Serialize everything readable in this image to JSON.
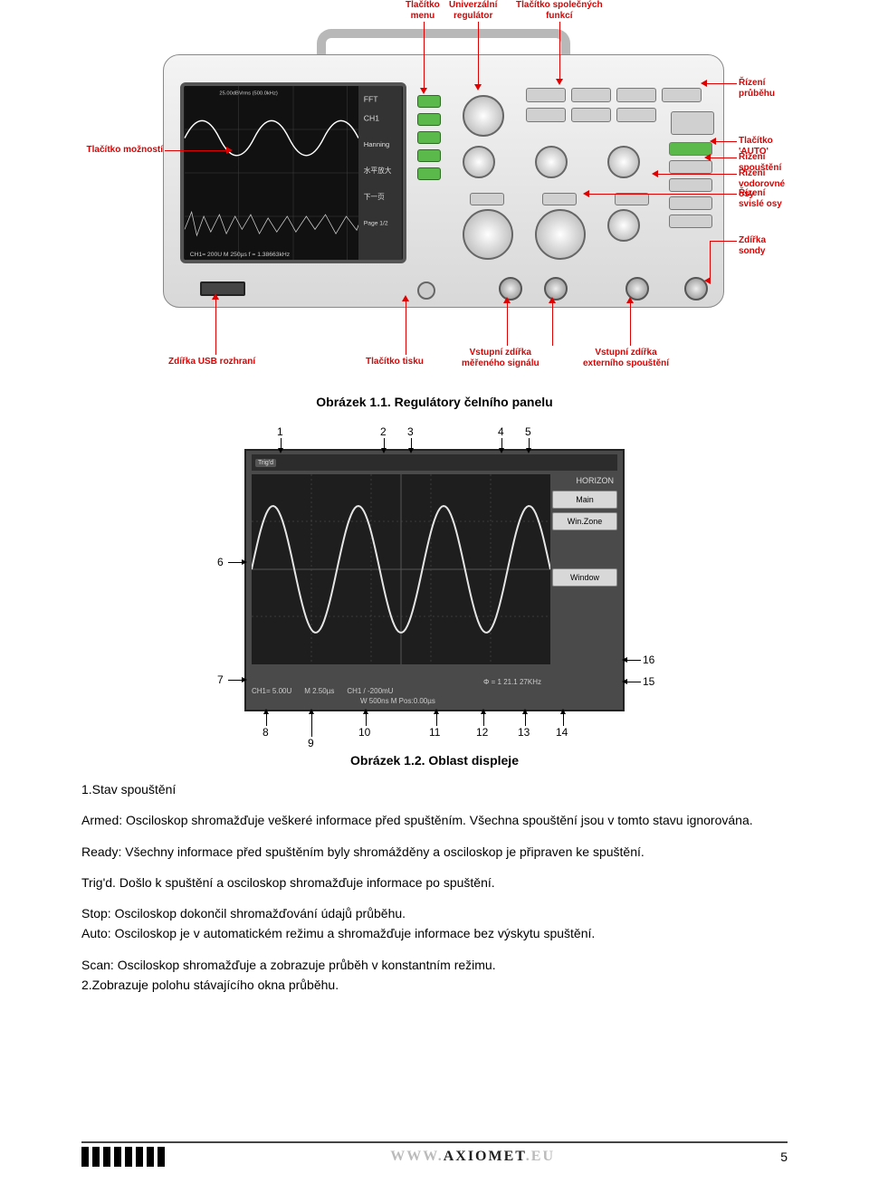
{
  "fig11": {
    "caption": "Obrázek 1.1. Regulátory čelního panelu",
    "annotations": {
      "menu_btn": "Tlačítko\nmenu",
      "universal_reg": "Univerzální\nregulátor",
      "common_fn": "Tlačítko společných\nfunkcí",
      "run_ctrl": "Řízení průběhu",
      "auto_btn": "Tlačítko 'AUTO'",
      "trig_ctrl": "Řízení spouštění",
      "h_axis": "Řízení vodorovné osy",
      "v_axis": "Řízení svislé osy",
      "probe_sock": "Zdířka sondy",
      "options_btn": "Tlačítko možností",
      "usb_sock": "Zdířka USB rozhraní",
      "print_btn": "Tlačítko tisku",
      "sig_in": "Vstupní zdířka\nměřeného signálu",
      "ext_trig": "Vstupní zdířka\nexterního spouštění"
    },
    "screen_side_labels": [
      "FFT",
      "CH1",
      "Hanning",
      "水平放大",
      "下一页",
      "Page 1/2"
    ],
    "screen_bottom": "CH1= 200U    M 250µs    f = 1.38663kHz",
    "screen_top": "25.00dBVrms (500.0kHz)"
  },
  "fig12": {
    "caption": "Obrázek 1.2. Oblast displeje",
    "top_tags": [
      "Trig'd"
    ],
    "side_title": "HORIZON",
    "side_buttons": [
      "Main",
      "Win.Zone",
      "Window"
    ],
    "bottom_line1": "Φ = 1 21.1 27KHz",
    "bottom_line2_a": "CH1= 5.00U",
    "bottom_line2_b": "M 2.50µs",
    "bottom_line2_c": "CH1 / -200mU",
    "bottom_line3": "W 500ns  M Pos:0.00µs",
    "pointer_nums": [
      "1",
      "2",
      "3",
      "4",
      "5",
      "6",
      "7",
      "8",
      "9",
      "10",
      "11",
      "12",
      "13",
      "14",
      "15",
      "16"
    ],
    "wave": {
      "type": "line",
      "color": "#e6e6e6",
      "bg": "#1e1e1e",
      "grid_color": "#555555",
      "xlim": [
        0,
        330
      ],
      "ylim": [
        0,
        210
      ],
      "amplitude": 70,
      "periods": 3.5,
      "y_center": 105
    }
  },
  "text": {
    "l1": "1.Stav spouštění",
    "p1": "Armed: Osciloskop shromažďuje veškeré informace před spuštěním. Všechna spouštění jsou v tomto stavu ignorována.",
    "p2": "Ready: Všechny informace před spuštěním byly shromážděny a osciloskop je připraven ke spuštění.",
    "p3": "Trig'd. Došlo k spuštění a osciloskop shromažďuje informace po spuštění.",
    "p4": "Stop: Osciloskop dokončil shromažďování údajů průběhu.",
    "p5": "Auto: Osciloskop je v automatickém režimu a shromažďuje informace bez výskytu spuštění.",
    "p6": "Scan: Osciloskop shromažďuje a zobrazuje průběh v konstantním režimu.",
    "p7": "2.Zobrazuje polohu stávajícího okna průběhu."
  },
  "footer": {
    "url_pre": "WWW.",
    "url_main": "AXIOMET",
    "url_post": ".EU",
    "page": "5"
  }
}
